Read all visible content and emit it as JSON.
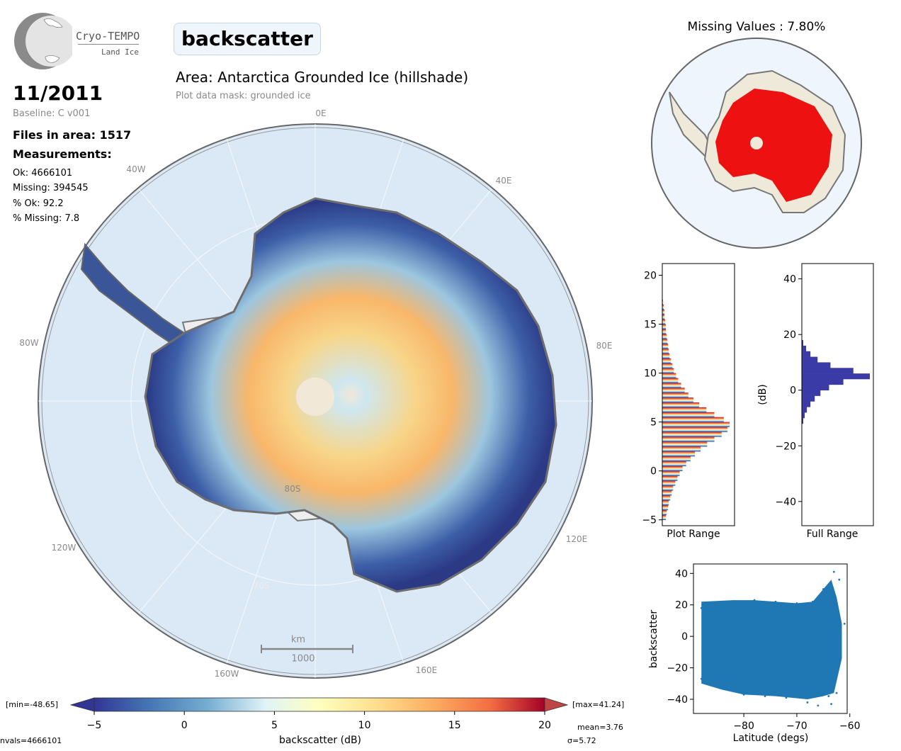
{
  "logo": {
    "name": "Cryo-TEMPO",
    "sub": "Land Ice"
  },
  "header": {
    "parameter": "backscatter",
    "area": "Area: Antarctica Grounded Ice (hillshade)",
    "mask": "Plot data mask: grounded ice"
  },
  "stats": {
    "date": "11/2011",
    "baseline": "Baseline: C v001",
    "files": "Files in area: 1517",
    "measurements_title": "Measurements:",
    "ok": "Ok: 4666101",
    "missing": "Missing: 394545",
    "pct_ok": "% Ok: 92.2",
    "pct_missing": "% Missing: 7.8"
  },
  "map": {
    "lon_labels": [
      "0E",
      "40E",
      "80E",
      "120E",
      "160E",
      "160W",
      "120W",
      "80W",
      "40W"
    ],
    "lat_labels": [
      "80S",
      "70S"
    ],
    "scalebar_unit": "km",
    "scalebar_value": "1000"
  },
  "missing_map": {
    "title": "Missing Values : 7.80%"
  },
  "colorbar": {
    "min_label": "[min=-48.65]",
    "max_label": "[max=41.24]",
    "label": "backscatter (dB)",
    "mean": "mean=3.76",
    "sigma": "σ=5.72",
    "nvals": "nvals=4666101",
    "colors": {
      "low": "#313695",
      "mid": "#ffffbf",
      "high": "#a50026"
    }
  },
  "chart_data": [
    {
      "type": "bar",
      "title": "",
      "xlabel": "Plot Range",
      "ylabel": "",
      "orientation": "horizontal",
      "ylim": [
        -5.6,
        21.2
      ],
      "yticks": [
        -5,
        0,
        5,
        10,
        15,
        20
      ],
      "bins_y": [
        -4.75,
        -4.25,
        -3.75,
        -3.25,
        -2.75,
        -2.25,
        -1.75,
        -1.25,
        -0.75,
        -0.25,
        0.25,
        0.75,
        1.25,
        1.75,
        2.25,
        2.75,
        3.25,
        3.75,
        4.25,
        4.75,
        5.25,
        5.75,
        6.25,
        6.75,
        7.25,
        7.75,
        8.25,
        8.75,
        9.25,
        9.75,
        10.25,
        10.75,
        11.25,
        11.75,
        12.25,
        12.75,
        13.25,
        13.75,
        14.25,
        14.75,
        15.25,
        15.75,
        16.25,
        16.75,
        17.25
      ],
      "counts": [
        5,
        6,
        8,
        9,
        11,
        13,
        15,
        18,
        21,
        24,
        28,
        33,
        39,
        45,
        53,
        62,
        72,
        82,
        90,
        93,
        85,
        72,
        61,
        51,
        43,
        36,
        31,
        26,
        22,
        19,
        16,
        14,
        12,
        10,
        9,
        8,
        7,
        6,
        5,
        5,
        4,
        3,
        3,
        2,
        1
      ]
    },
    {
      "type": "bar",
      "title": "",
      "xlabel": "Full Range",
      "ylabel": "(dB)",
      "orientation": "horizontal",
      "ylim": [
        -48.7,
        45.5
      ],
      "yticks": [
        -40,
        -20,
        0,
        20,
        40
      ],
      "bins_y": [
        -11,
        -9,
        -7,
        -5,
        -3,
        -1,
        1,
        3,
        5,
        7,
        9,
        11,
        13,
        15,
        17
      ],
      "counts": [
        2,
        4,
        7,
        12,
        18,
        26,
        38,
        58,
        95,
        72,
        40,
        22,
        12,
        6,
        2
      ]
    },
    {
      "type": "scatter",
      "title": "",
      "xlabel": "Latitude (degs)",
      "ylabel": "backscatter",
      "xlim": [
        -89.5,
        -60.5
      ],
      "ylim": [
        -49,
        46
      ],
      "xticks": [
        -80,
        -70,
        -60
      ],
      "yticks": [
        -40,
        -20,
        0,
        20,
        40
      ],
      "color": "#1f77b4",
      "x": [
        -88,
        -88,
        -84,
        -80,
        -76,
        -72,
        -68,
        -66,
        -64,
        -63,
        -62,
        -61,
        -65,
        -63.5,
        -62.5,
        -86,
        -82,
        -78,
        -74,
        -70,
        -67
      ],
      "y": [
        18,
        -27,
        -33,
        -37,
        -38,
        -39,
        -42,
        -44,
        -38,
        41,
        36,
        8,
        30,
        -43,
        -36,
        21,
        22,
        23,
        22,
        21,
        22
      ]
    }
  ]
}
